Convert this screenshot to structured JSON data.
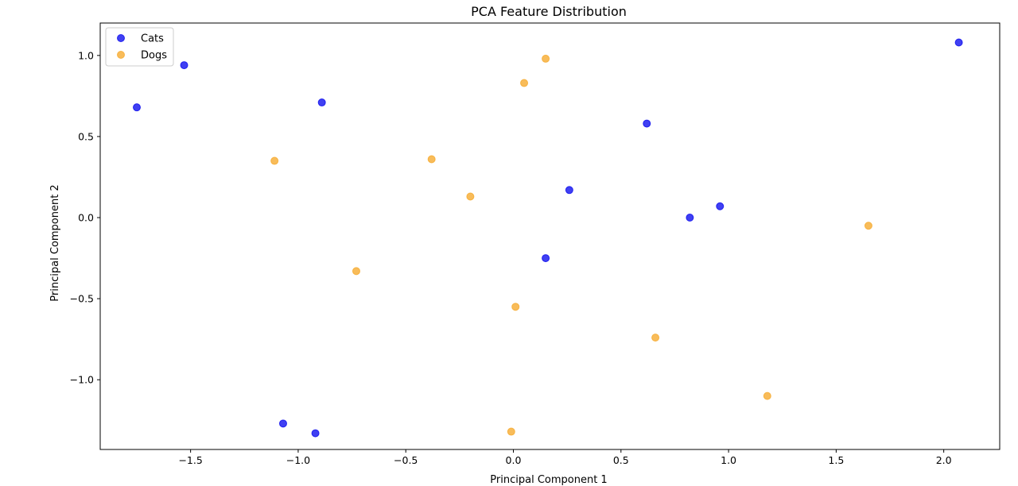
{
  "chart_data": {
    "type": "scatter",
    "title": "PCA Feature Distribution",
    "xlabel": "Principal Component 1",
    "ylabel": "Principal Component 2",
    "xlim": [
      -1.92,
      2.26
    ],
    "ylim": [
      -1.43,
      1.2
    ],
    "xticks": [
      -1.5,
      -1.0,
      -0.5,
      0.0,
      0.5,
      1.0,
      1.5,
      2.0
    ],
    "xtick_labels": [
      "−1.5",
      "−1.0",
      "−0.5",
      "0.0",
      "0.5",
      "1.0",
      "1.5",
      "2.0"
    ],
    "yticks": [
      -1.0,
      -0.5,
      0.0,
      0.5,
      1.0
    ],
    "ytick_labels": [
      "−1.0",
      "−0.5",
      "0.0",
      "0.5",
      "1.0"
    ],
    "grid": false,
    "legend_position": "top-left",
    "series": [
      {
        "name": "Cats",
        "color": "#0000ee",
        "points": [
          [
            2.07,
            1.08
          ],
          [
            -1.53,
            0.94
          ],
          [
            -1.75,
            0.68
          ],
          [
            -0.89,
            0.71
          ],
          [
            0.62,
            0.58
          ],
          [
            0.26,
            0.17
          ],
          [
            0.82,
            0.0
          ],
          [
            0.96,
            0.07
          ],
          [
            0.15,
            -0.25
          ],
          [
            -1.07,
            -1.27
          ],
          [
            -0.92,
            -1.33
          ]
        ]
      },
      {
        "name": "Dogs",
        "color": "#f5a623",
        "points": [
          [
            0.15,
            0.98
          ],
          [
            0.05,
            0.83
          ],
          [
            -1.11,
            0.35
          ],
          [
            -0.38,
            0.36
          ],
          [
            -0.2,
            0.13
          ],
          [
            -0.73,
            -0.33
          ],
          [
            0.01,
            -0.55
          ],
          [
            0.66,
            -0.74
          ],
          [
            1.65,
            -0.05
          ],
          [
            1.18,
            -1.1
          ],
          [
            -0.01,
            -1.32
          ]
        ]
      }
    ]
  }
}
